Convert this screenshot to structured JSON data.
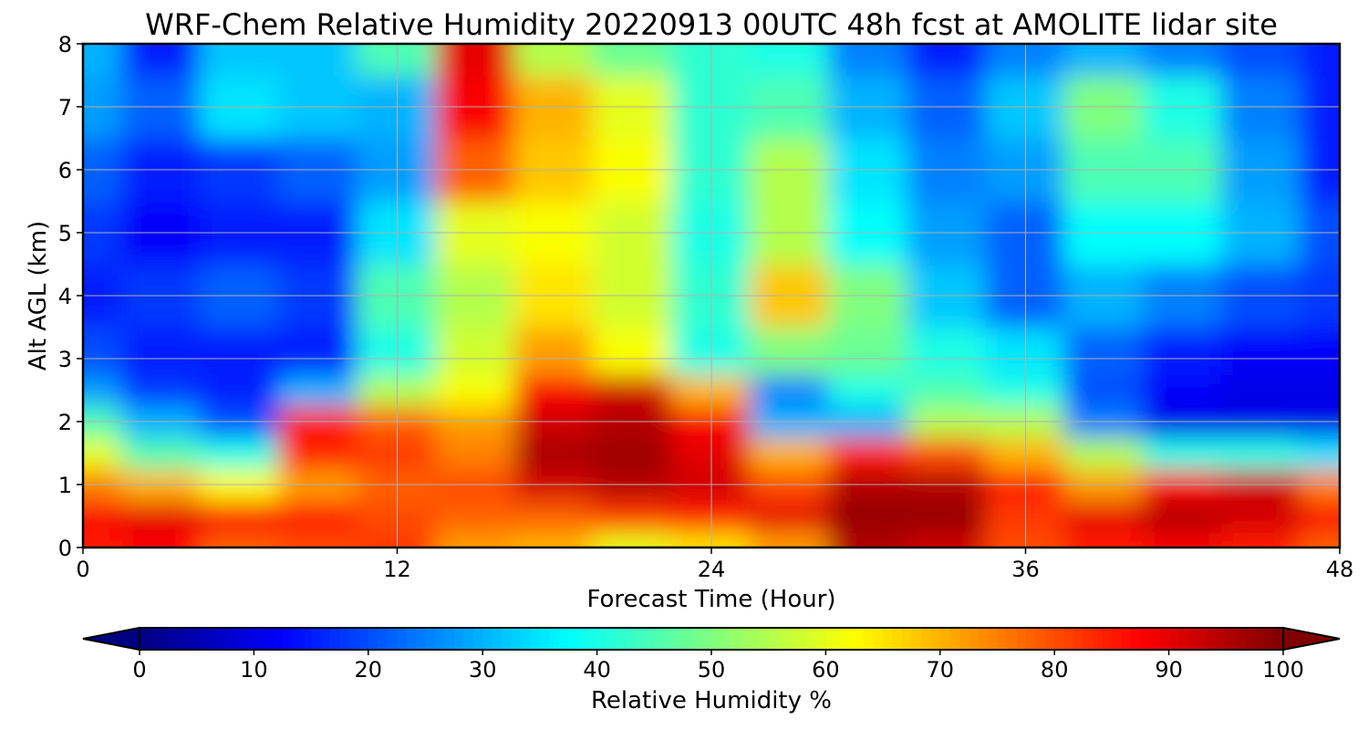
{
  "chart_data": {
    "type": "heatmap",
    "title": "WRF-Chem Relative Humidity 20220913 00UTC 48h fcst at AMOLITE lidar site",
    "xlabel": "Forecast Time (Hour)",
    "ylabel": "Alt AGL (km)",
    "xlim": [
      0,
      48
    ],
    "ylim": [
      0,
      8
    ],
    "x_ticks": [
      0,
      12,
      24,
      36,
      48
    ],
    "y_ticks": [
      0,
      1,
      2,
      3,
      4,
      5,
      6,
      7,
      8
    ],
    "grid": true,
    "x": [
      0,
      3,
      6,
      9,
      12,
      15,
      18,
      21,
      24,
      27,
      30,
      33,
      36,
      39,
      42,
      45,
      48
    ],
    "y": [
      0,
      0.5,
      1,
      1.5,
      2,
      2.5,
      3,
      4,
      5,
      6,
      7,
      8
    ],
    "z": [
      [
        85,
        88,
        78,
        80,
        82,
        72,
        70,
        60,
        65,
        72,
        95,
        92,
        80,
        85,
        88,
        85,
        78
      ],
      [
        88,
        90,
        88,
        86,
        80,
        78,
        78,
        82,
        85,
        90,
        98,
        98,
        82,
        90,
        95,
        92,
        88
      ],
      [
        75,
        70,
        62,
        72,
        78,
        80,
        92,
        95,
        92,
        80,
        95,
        95,
        85,
        72,
        88,
        92,
        75
      ],
      [
        60,
        45,
        40,
        85,
        82,
        75,
        96,
        97,
        90,
        70,
        85,
        80,
        70,
        55,
        40,
        40,
        35
      ],
      [
        45,
        30,
        20,
        85,
        78,
        72,
        92,
        95,
        88,
        30,
        30,
        55,
        55,
        25,
        10,
        10,
        10
      ],
      [
        28,
        18,
        15,
        30,
        55,
        62,
        88,
        92,
        70,
        25,
        40,
        45,
        40,
        20,
        12,
        10,
        10
      ],
      [
        20,
        15,
        15,
        15,
        40,
        58,
        72,
        62,
        40,
        50,
        48,
        40,
        35,
        22,
        15,
        12,
        12
      ],
      [
        15,
        18,
        22,
        18,
        45,
        55,
        65,
        58,
        42,
        68,
        50,
        32,
        22,
        30,
        25,
        20,
        18
      ],
      [
        18,
        12,
        15,
        15,
        35,
        60,
        62,
        58,
        40,
        55,
        38,
        28,
        22,
        38,
        38,
        30,
        20
      ],
      [
        22,
        15,
        18,
        22,
        28,
        78,
        68,
        62,
        42,
        55,
        35,
        25,
        28,
        45,
        45,
        28,
        15
      ],
      [
        28,
        22,
        35,
        32,
        30,
        88,
        70,
        60,
        42,
        45,
        30,
        22,
        32,
        50,
        40,
        25,
        15
      ],
      [
        30,
        15,
        32,
        32,
        45,
        90,
        55,
        48,
        42,
        40,
        25,
        15,
        25,
        30,
        25,
        20,
        15
      ]
    ],
    "colorbar": {
      "label": "Relative Humidity %",
      "ticks": [
        0,
        10,
        20,
        30,
        40,
        50,
        60,
        70,
        80,
        90,
        100
      ],
      "range": [
        0,
        100
      ],
      "extend": "both",
      "colormap": "jet"
    }
  }
}
